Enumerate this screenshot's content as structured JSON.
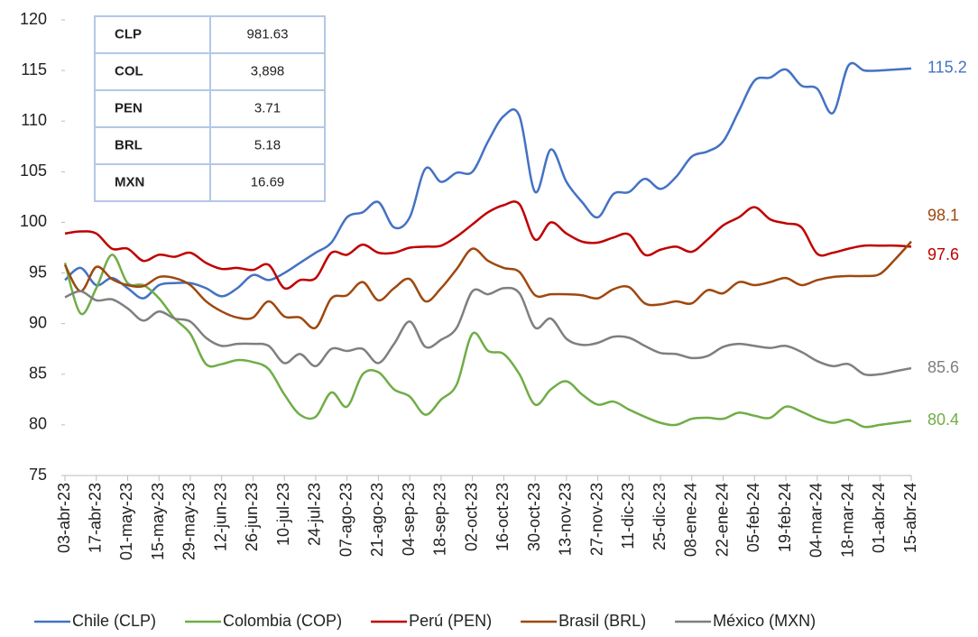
{
  "chart_data": {
    "type": "line",
    "categories": [
      "03-abr-23",
      null,
      "17-abr-23",
      null,
      "01-may-23",
      null,
      "15-may-23",
      null,
      "29-may-23",
      null,
      "12-jun-23",
      null,
      "26-jun-23",
      null,
      "10-jul-23",
      null,
      "24-jul-23",
      null,
      "07-ago-23",
      null,
      "21-ago-23",
      null,
      "04-sep-23",
      null,
      "18-sep-23",
      null,
      "02-oct-23",
      null,
      "16-oct-23",
      null,
      "30-oct-23",
      null,
      "13-nov-23",
      null,
      "27-nov-23",
      null,
      "11-dic-23",
      null,
      "25-dic-23",
      null,
      "08-ene-24",
      null,
      "22-ene-24",
      null,
      "05-feb-24",
      null,
      "19-feb-24",
      null,
      "04-mar-24",
      null,
      "18-mar-24",
      null,
      "01-abr-24",
      null,
      "15-abr-24"
    ],
    "series": [
      {
        "name": "Chile (CLP)",
        "color": "#4472c4",
        "values": [
          94.3,
          95.5,
          93.8,
          94.5,
          93.5,
          92.5,
          93.8,
          94,
          94,
          93.5,
          92.7,
          93.5,
          94.8,
          94.3,
          95,
          96,
          97,
          98,
          100.5,
          101,
          102,
          99.5,
          100.5,
          105.3,
          104,
          104.9,
          105,
          108,
          110.5,
          110.5,
          103,
          107.2,
          104,
          102,
          100.5,
          102.8,
          103,
          104.3,
          103.3,
          104.5,
          106.5,
          107,
          108,
          111,
          114,
          114.3,
          115.1,
          113.5,
          113.2,
          110.8,
          115.5,
          115,
          115,
          115.1,
          115.2
        ]
      },
      {
        "name": "Colombia (COP)",
        "color": "#70ad47",
        "values": [
          96,
          91,
          93.5,
          96.8,
          94,
          93.8,
          92.5,
          90.5,
          89,
          86,
          86,
          86.4,
          86.2,
          85.5,
          83,
          81,
          80.8,
          83.2,
          81.8,
          85,
          85.2,
          83.5,
          82.8,
          81,
          82.5,
          84,
          89,
          87.3,
          87,
          85,
          82,
          83.5,
          84.3,
          83,
          82,
          82.3,
          81.5,
          80.8,
          80.2,
          80,
          80.6,
          80.7,
          80.6,
          81.2,
          80.9,
          80.7,
          81.8,
          81.3,
          80.6,
          80.2,
          80.5,
          79.8,
          80,
          80.2,
          80.4
        ]
      },
      {
        "name": "Perú (PEN)",
        "color": "#c00000",
        "values": [
          98.9,
          99.1,
          98.9,
          97.4,
          97.4,
          96.2,
          96.8,
          96.6,
          97,
          96,
          95.4,
          95.5,
          95.3,
          95.8,
          93.5,
          94.3,
          94.5,
          97,
          96.8,
          97.8,
          97,
          97,
          97.5,
          97.6,
          97.7,
          98.6,
          99.8,
          101,
          101.7,
          101.8,
          98.3,
          100,
          98.9,
          98.1,
          98,
          98.5,
          98.8,
          96.8,
          97.3,
          97.6,
          97.1,
          98.3,
          99.7,
          100.5,
          101.5,
          100.3,
          99.9,
          99.5,
          96.9,
          97,
          97.4,
          97.7,
          97.7,
          97.7,
          97.6
        ]
      },
      {
        "name": "Brasil (BRL)",
        "color": "#9e480e",
        "values": [
          95.8,
          93.2,
          95.6,
          94.4,
          93.8,
          93.7,
          94.6,
          94.5,
          93.8,
          92.2,
          91.2,
          90.6,
          90.6,
          92.2,
          90.7,
          90.6,
          89.6,
          92.5,
          92.8,
          94.1,
          92.3,
          93.5,
          94.4,
          92.2,
          93.5,
          95.4,
          97.4,
          96.2,
          95.5,
          95.1,
          92.8,
          92.9,
          92.9,
          92.8,
          92.5,
          93.4,
          93.6,
          92,
          91.9,
          92.2,
          92,
          93.3,
          93,
          94.1,
          93.8,
          94.1,
          94.5,
          93.8,
          94.3,
          94.6,
          94.7,
          94.7,
          94.9,
          96.4,
          98.1
        ]
      },
      {
        "name": "México (MXN)",
        "color": "#7f7f7f",
        "values": [
          92.6,
          93.2,
          92.3,
          92.4,
          91.5,
          90.3,
          91.2,
          90.5,
          90.2,
          88.6,
          87.8,
          88,
          88,
          87.8,
          86.1,
          87,
          85.8,
          87.5,
          87.3,
          87.5,
          86.1,
          88,
          90.2,
          87.7,
          88.4,
          89.6,
          93.2,
          92.9,
          93.5,
          93,
          89.6,
          90.5,
          88.5,
          87.9,
          88.1,
          88.7,
          88.6,
          87.8,
          87.1,
          87,
          86.6,
          86.8,
          87.7,
          88,
          87.8,
          87.6,
          87.8,
          87.2,
          86.3,
          85.8,
          86,
          85,
          85,
          85.3,
          85.6
        ]
      }
    ],
    "ylim": [
      75,
      120
    ],
    "yticks": [
      75,
      80,
      85,
      90,
      95,
      100,
      105,
      110,
      115,
      120
    ],
    "grid": false,
    "legend": "bottom",
    "table": {
      "rows": [
        [
          "CLP",
          "981.63"
        ],
        [
          "COL",
          "3,898"
        ],
        [
          "PEN",
          "3.71"
        ],
        [
          "BRL",
          "5.18"
        ],
        [
          "MXN",
          "16.69"
        ]
      ]
    }
  }
}
